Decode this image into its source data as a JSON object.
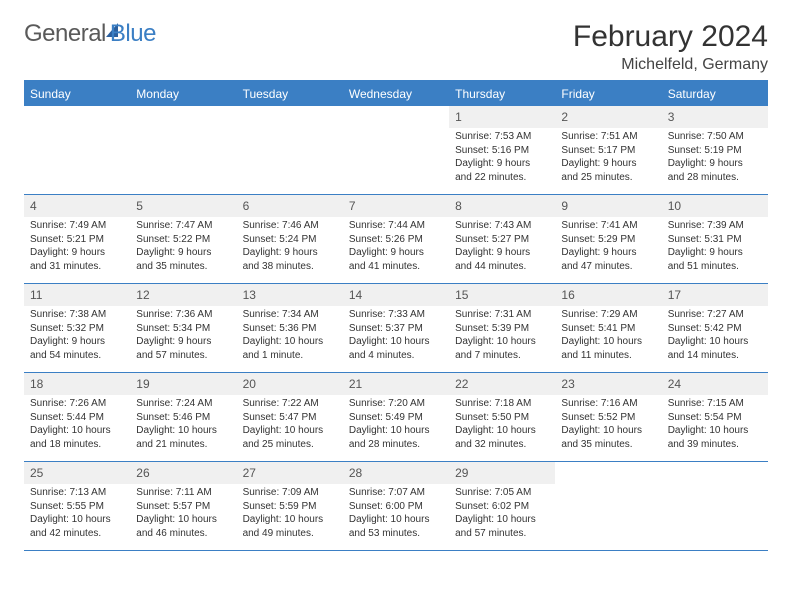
{
  "logo": {
    "part1": "General",
    "part2": "Blue"
  },
  "title": "February 2024",
  "subtitle": "Michelfeld, Germany",
  "weekdays": [
    "Sunday",
    "Monday",
    "Tuesday",
    "Wednesday",
    "Thursday",
    "Friday",
    "Saturday"
  ],
  "colors": {
    "accent": "#3b7fc4",
    "accent_dark": "#2b5f9e",
    "header_bg": "#3b7fc4",
    "cell_date_bg": "#f0f0f0",
    "text": "#333333",
    "muted": "#5a5a5a"
  },
  "weeks": [
    [
      null,
      null,
      null,
      null,
      {
        "d": "1",
        "sr": "7:53 AM",
        "ss": "5:16 PM",
        "dl": "9 hours and 22 minutes."
      },
      {
        "d": "2",
        "sr": "7:51 AM",
        "ss": "5:17 PM",
        "dl": "9 hours and 25 minutes."
      },
      {
        "d": "3",
        "sr": "7:50 AM",
        "ss": "5:19 PM",
        "dl": "9 hours and 28 minutes."
      }
    ],
    [
      {
        "d": "4",
        "sr": "7:49 AM",
        "ss": "5:21 PM",
        "dl": "9 hours and 31 minutes."
      },
      {
        "d": "5",
        "sr": "7:47 AM",
        "ss": "5:22 PM",
        "dl": "9 hours and 35 minutes."
      },
      {
        "d": "6",
        "sr": "7:46 AM",
        "ss": "5:24 PM",
        "dl": "9 hours and 38 minutes."
      },
      {
        "d": "7",
        "sr": "7:44 AM",
        "ss": "5:26 PM",
        "dl": "9 hours and 41 minutes."
      },
      {
        "d": "8",
        "sr": "7:43 AM",
        "ss": "5:27 PM",
        "dl": "9 hours and 44 minutes."
      },
      {
        "d": "9",
        "sr": "7:41 AM",
        "ss": "5:29 PM",
        "dl": "9 hours and 47 minutes."
      },
      {
        "d": "10",
        "sr": "7:39 AM",
        "ss": "5:31 PM",
        "dl": "9 hours and 51 minutes."
      }
    ],
    [
      {
        "d": "11",
        "sr": "7:38 AM",
        "ss": "5:32 PM",
        "dl": "9 hours and 54 minutes."
      },
      {
        "d": "12",
        "sr": "7:36 AM",
        "ss": "5:34 PM",
        "dl": "9 hours and 57 minutes."
      },
      {
        "d": "13",
        "sr": "7:34 AM",
        "ss": "5:36 PM",
        "dl": "10 hours and 1 minute."
      },
      {
        "d": "14",
        "sr": "7:33 AM",
        "ss": "5:37 PM",
        "dl": "10 hours and 4 minutes."
      },
      {
        "d": "15",
        "sr": "7:31 AM",
        "ss": "5:39 PM",
        "dl": "10 hours and 7 minutes."
      },
      {
        "d": "16",
        "sr": "7:29 AM",
        "ss": "5:41 PM",
        "dl": "10 hours and 11 minutes."
      },
      {
        "d": "17",
        "sr": "7:27 AM",
        "ss": "5:42 PM",
        "dl": "10 hours and 14 minutes."
      }
    ],
    [
      {
        "d": "18",
        "sr": "7:26 AM",
        "ss": "5:44 PM",
        "dl": "10 hours and 18 minutes."
      },
      {
        "d": "19",
        "sr": "7:24 AM",
        "ss": "5:46 PM",
        "dl": "10 hours and 21 minutes."
      },
      {
        "d": "20",
        "sr": "7:22 AM",
        "ss": "5:47 PM",
        "dl": "10 hours and 25 minutes."
      },
      {
        "d": "21",
        "sr": "7:20 AM",
        "ss": "5:49 PM",
        "dl": "10 hours and 28 minutes."
      },
      {
        "d": "22",
        "sr": "7:18 AM",
        "ss": "5:50 PM",
        "dl": "10 hours and 32 minutes."
      },
      {
        "d": "23",
        "sr": "7:16 AM",
        "ss": "5:52 PM",
        "dl": "10 hours and 35 minutes."
      },
      {
        "d": "24",
        "sr": "7:15 AM",
        "ss": "5:54 PM",
        "dl": "10 hours and 39 minutes."
      }
    ],
    [
      {
        "d": "25",
        "sr": "7:13 AM",
        "ss": "5:55 PM",
        "dl": "10 hours and 42 minutes."
      },
      {
        "d": "26",
        "sr": "7:11 AM",
        "ss": "5:57 PM",
        "dl": "10 hours and 46 minutes."
      },
      {
        "d": "27",
        "sr": "7:09 AM",
        "ss": "5:59 PM",
        "dl": "10 hours and 49 minutes."
      },
      {
        "d": "28",
        "sr": "7:07 AM",
        "ss": "6:00 PM",
        "dl": "10 hours and 53 minutes."
      },
      {
        "d": "29",
        "sr": "7:05 AM",
        "ss": "6:02 PM",
        "dl": "10 hours and 57 minutes."
      },
      null,
      null
    ]
  ],
  "labels": {
    "sunrise": "Sunrise: ",
    "sunset": "Sunset: ",
    "daylight": "Daylight: "
  }
}
